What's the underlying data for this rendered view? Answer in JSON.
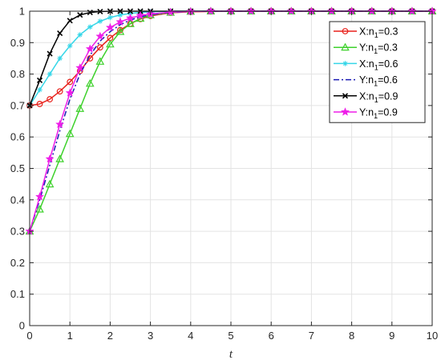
{
  "chart_data": {
    "type": "line",
    "title": "",
    "xlabel": "t",
    "ylabel": "",
    "xlim": [
      0,
      10
    ],
    "ylim": [
      0,
      1
    ],
    "xticks": [
      "0",
      "1",
      "2",
      "3",
      "4",
      "5",
      "6",
      "7",
      "8",
      "9",
      "10"
    ],
    "yticks": [
      "0",
      "0.1",
      "0.2",
      "0.3",
      "0.4",
      "0.5",
      "0.6",
      "0.7",
      "0.8",
      "0.9",
      "1"
    ],
    "grid": true,
    "legend_position": "top-right",
    "x": [
      0,
      0.25,
      0.5,
      0.75,
      1,
      1.25,
      1.5,
      1.75,
      2,
      2.25,
      2.5,
      2.75,
      3,
      3.5,
      4,
      4.5,
      5,
      5.5,
      6,
      6.5,
      7,
      7.5,
      8,
      8.5,
      9,
      9.5,
      10
    ],
    "series": [
      {
        "name": "X:n₁=0.3",
        "legend_main": "X:n",
        "legend_sub": "1",
        "legend_tail": "=0.3",
        "color": "#e8211b",
        "dash": "solid",
        "marker": "circle",
        "values": [
          0.7,
          0.705,
          0.72,
          0.745,
          0.775,
          0.81,
          0.85,
          0.885,
          0.915,
          0.94,
          0.96,
          0.975,
          0.985,
          0.995,
          0.998,
          0.999,
          1,
          1,
          1,
          1,
          1,
          1,
          1,
          1,
          1,
          1,
          1
        ]
      },
      {
        "name": "Y:n₁=0.3",
        "legend_main": "Y:n",
        "legend_sub": "1",
        "legend_tail": "=0.3",
        "color": "#3ed12c",
        "dash": "solid",
        "marker": "triangle",
        "values": [
          0.3,
          0.37,
          0.45,
          0.53,
          0.61,
          0.69,
          0.77,
          0.84,
          0.895,
          0.935,
          0.96,
          0.977,
          0.988,
          0.996,
          0.999,
          1,
          1,
          1,
          1,
          1,
          1,
          1,
          1,
          1,
          1,
          1,
          1
        ]
      },
      {
        "name": "X:n₁=0.6",
        "legend_main": "X:n",
        "legend_sub": "1",
        "legend_tail": "=0.6",
        "color": "#35d6e8",
        "dash": "solid",
        "marker": "asterisk",
        "values": [
          0.7,
          0.75,
          0.8,
          0.85,
          0.89,
          0.925,
          0.95,
          0.968,
          0.98,
          0.988,
          0.993,
          0.996,
          0.998,
          1,
          1,
          1,
          1,
          1,
          1,
          1,
          1,
          1,
          1,
          1,
          1,
          1,
          1
        ]
      },
      {
        "name": "Y:n₁=0.6",
        "legend_main": "Y:n",
        "legend_sub": "1",
        "legend_tail": "=0.6",
        "color": "#1a1ab4",
        "dash": "dashdot",
        "marker": "none",
        "values": [
          0.3,
          0.4,
          0.51,
          0.62,
          0.72,
          0.8,
          0.86,
          0.905,
          0.935,
          0.957,
          0.972,
          0.982,
          0.989,
          0.996,
          0.999,
          1,
          1,
          1,
          1,
          1,
          1,
          1,
          1,
          1,
          1,
          1,
          1
        ]
      },
      {
        "name": "X:n₁=0.9",
        "legend_main": "X:n",
        "legend_sub": "1",
        "legend_tail": "=0.9",
        "color": "#000000",
        "dash": "solid",
        "marker": "x",
        "values": [
          0.7,
          0.78,
          0.865,
          0.93,
          0.97,
          0.988,
          0.996,
          0.999,
          1,
          1,
          1,
          1,
          1,
          1,
          1,
          1,
          1,
          1,
          1,
          1,
          1,
          1,
          1,
          1,
          1,
          1,
          1
        ]
      },
      {
        "name": "Y:n₁=0.9",
        "legend_main": "Y:n",
        "legend_sub": "1",
        "legend_tail": "=0.9",
        "color": "#ee1ee8",
        "dash": "solid",
        "marker": "star",
        "values": [
          0.3,
          0.41,
          0.53,
          0.64,
          0.74,
          0.82,
          0.88,
          0.92,
          0.948,
          0.966,
          0.978,
          0.986,
          0.991,
          0.997,
          0.999,
          1,
          1,
          1,
          1,
          1,
          1,
          1,
          1,
          1,
          1,
          1,
          1
        ]
      }
    ]
  }
}
